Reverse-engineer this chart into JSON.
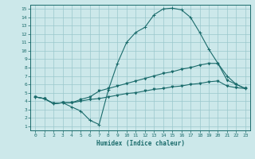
{
  "xlabel": "Humidex (Indice chaleur)",
  "bg_color": "#cce8ea",
  "grid_color": "#9ac8cc",
  "line_color": "#1a6b6b",
  "xlim": [
    -0.5,
    23.5
  ],
  "ylim": [
    0.5,
    15.5
  ],
  "xticks": [
    0,
    1,
    2,
    3,
    4,
    5,
    6,
    7,
    8,
    9,
    10,
    11,
    12,
    13,
    14,
    15,
    16,
    17,
    18,
    19,
    20,
    21,
    22,
    23
  ],
  "yticks": [
    1,
    2,
    3,
    4,
    5,
    6,
    7,
    8,
    9,
    10,
    11,
    12,
    13,
    14,
    15
  ],
  "line1_x": [
    0,
    1,
    2,
    3,
    4,
    5,
    6,
    7,
    8,
    9,
    10,
    11,
    12,
    13,
    14,
    15,
    16,
    17,
    18,
    19,
    20,
    21,
    22,
    23
  ],
  "line1_y": [
    4.5,
    4.3,
    3.7,
    3.8,
    3.3,
    2.8,
    1.7,
    1.2,
    5.3,
    8.5,
    11.0,
    12.2,
    12.8,
    14.3,
    15.0,
    15.1,
    14.9,
    14.0,
    12.2,
    10.2,
    8.5,
    7.0,
    6.0,
    5.5
  ],
  "line2_x": [
    0,
    1,
    2,
    3,
    4,
    5,
    6,
    7,
    8,
    9,
    10,
    11,
    12,
    13,
    14,
    15,
    16,
    17,
    18,
    19,
    20,
    21,
    22,
    23
  ],
  "line2_y": [
    4.5,
    4.3,
    3.7,
    3.8,
    3.8,
    4.2,
    4.5,
    5.2,
    5.5,
    5.8,
    6.1,
    6.4,
    6.7,
    7.0,
    7.3,
    7.5,
    7.8,
    8.0,
    8.3,
    8.5,
    8.5,
    6.5,
    6.0,
    5.5
  ],
  "line3_x": [
    0,
    1,
    2,
    3,
    4,
    5,
    6,
    7,
    8,
    9,
    10,
    11,
    12,
    13,
    14,
    15,
    16,
    17,
    18,
    19,
    20,
    21,
    22,
    23
  ],
  "line3_y": [
    4.5,
    4.3,
    3.7,
    3.8,
    3.8,
    4.0,
    4.2,
    4.3,
    4.5,
    4.7,
    4.9,
    5.0,
    5.2,
    5.4,
    5.5,
    5.7,
    5.8,
    6.0,
    6.1,
    6.3,
    6.4,
    5.8,
    5.6,
    5.5
  ]
}
